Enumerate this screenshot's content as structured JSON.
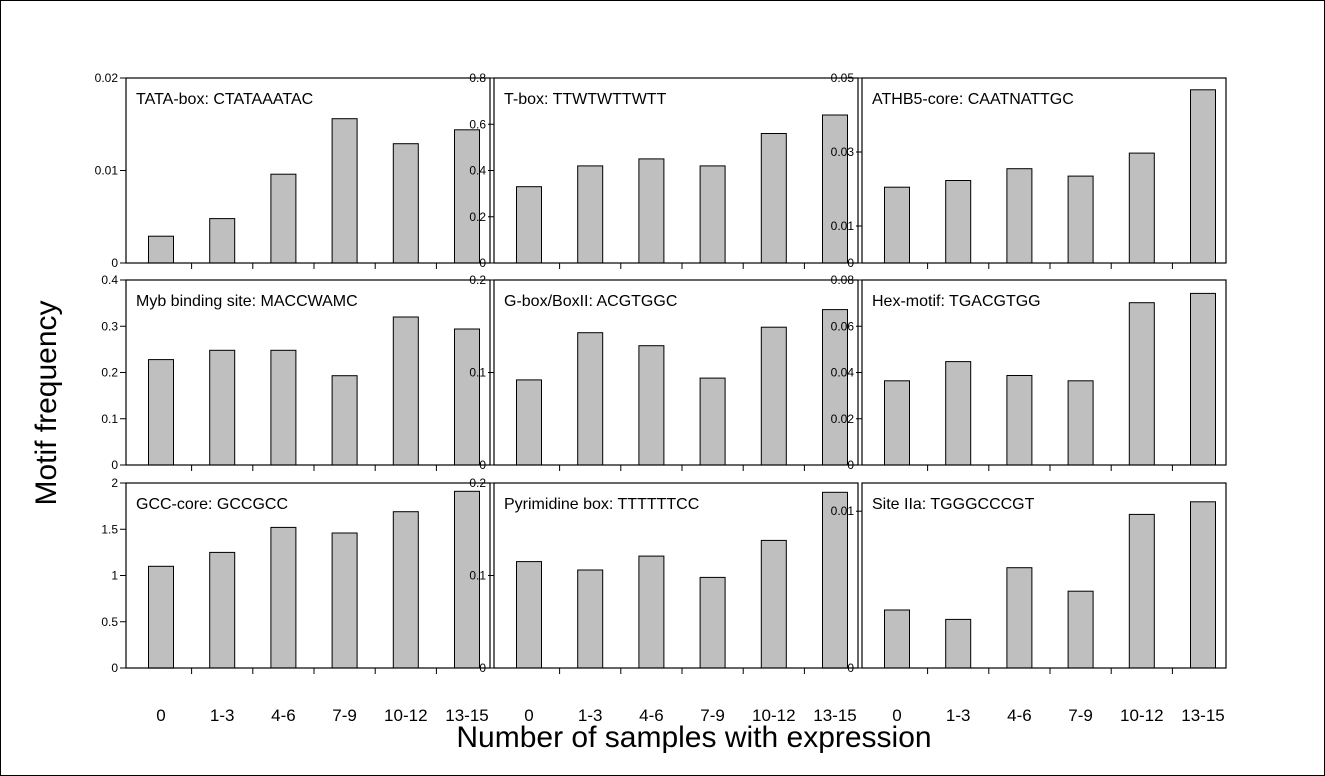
{
  "figure": {
    "xlabel": "Number of samples with expression",
    "ylabel": "Motif frequency",
    "categories": [
      "0",
      "1-3",
      "4-6",
      "7-9",
      "10-12",
      "13-15"
    ],
    "colors": {
      "bar": "#bfbfbf",
      "frame": "#000000",
      "background": "#ffffff"
    }
  },
  "chart_data": [
    {
      "type": "bar",
      "title": "TATA-box: CTATAAATAC",
      "categories": [
        "0",
        "1-3",
        "4-6",
        "7-9",
        "10-12",
        "13-15"
      ],
      "values": [
        0.0029,
        0.0048,
        0.0096,
        0.0156,
        0.0129,
        0.0144
      ],
      "ylim": [
        0,
        0.02
      ],
      "yticks": [
        0,
        0.01,
        0.02
      ],
      "ytick_labels": [
        "0",
        "0.01",
        "0.02"
      ],
      "xlabel": "",
      "ylabel": ""
    },
    {
      "type": "bar",
      "title": "T-box: TTWTWTTWTT",
      "categories": [
        "0",
        "1-3",
        "4-6",
        "7-9",
        "10-12",
        "13-15"
      ],
      "values": [
        0.33,
        0.42,
        0.45,
        0.42,
        0.56,
        0.64
      ],
      "ylim": [
        0,
        0.8
      ],
      "yticks": [
        0,
        0.2,
        0.4,
        0.6,
        0.8
      ],
      "ytick_labels": [
        "0",
        "0.2",
        "0.4",
        "0.6",
        "0.8"
      ],
      "xlabel": "",
      "ylabel": ""
    },
    {
      "type": "bar",
      "title": "ATHB5-core: CAATNATTGC",
      "categories": [
        "0",
        "1-3",
        "4-6",
        "7-9",
        "10-12",
        "13-15"
      ],
      "values": [
        0.0205,
        0.0223,
        0.0255,
        0.0235,
        0.0297,
        0.0468
      ],
      "ylim": [
        0,
        0.05
      ],
      "yticks": [
        0,
        0.01,
        0.03,
        0.05
      ],
      "ytick_labels": [
        "0",
        "0.01",
        "0.03",
        "0.05"
      ],
      "xlabel": "",
      "ylabel": ""
    },
    {
      "type": "bar",
      "title": "Myb binding site: MACCWAMC",
      "categories": [
        "0",
        "1-3",
        "4-6",
        "7-9",
        "10-12",
        "13-15"
      ],
      "values": [
        0.228,
        0.248,
        0.248,
        0.193,
        0.32,
        0.294
      ],
      "ylim": [
        0,
        0.4
      ],
      "yticks": [
        0,
        0.1,
        0.2,
        0.3,
        0.4
      ],
      "ytick_labels": [
        "0",
        "0.1",
        "0.2",
        "0.3",
        "0.4"
      ],
      "xlabel": "",
      "ylabel": ""
    },
    {
      "type": "bar",
      "title": "G-box/BoxII: ACGTGGC",
      "categories": [
        "0",
        "1-3",
        "4-6",
        "7-9",
        "10-12",
        "13-15"
      ],
      "values": [
        0.092,
        0.143,
        0.129,
        0.094,
        0.149,
        0.168
      ],
      "ylim": [
        0,
        0.2
      ],
      "yticks": [
        0,
        0.1,
        0.2
      ],
      "ytick_labels": [
        "0",
        "0.1",
        "0.2"
      ],
      "xlabel": "",
      "ylabel": ""
    },
    {
      "type": "bar",
      "title": "Hex-motif: TGACGTGG",
      "categories": [
        "0",
        "1-3",
        "4-6",
        "7-9",
        "10-12",
        "13-15"
      ],
      "values": [
        0.0364,
        0.0447,
        0.0387,
        0.0364,
        0.0702,
        0.0742
      ],
      "ylim": [
        0,
        0.08
      ],
      "yticks": [
        0,
        0.02,
        0.04,
        0.06,
        0.08
      ],
      "ytick_labels": [
        "0",
        "0.02",
        "0.04",
        "0.06",
        "0.08"
      ],
      "xlabel": "",
      "ylabel": ""
    },
    {
      "type": "bar",
      "title": "GCC-core: GCCGCC",
      "categories": [
        "0",
        "1-3",
        "4-6",
        "7-9",
        "10-12",
        "13-15"
      ],
      "values": [
        1.1,
        1.25,
        1.52,
        1.46,
        1.69,
        1.91
      ],
      "ylim": [
        0,
        2
      ],
      "yticks": [
        0,
        0.5,
        1,
        1.5,
        2
      ],
      "ytick_labels": [
        "0",
        "0.5",
        "1",
        "1.5",
        "2"
      ],
      "xlabel": "",
      "ylabel": ""
    },
    {
      "type": "bar",
      "title": "Pyrimidine box: TTTTTTCC",
      "categories": [
        "0",
        "1-3",
        "4-6",
        "7-9",
        "10-12",
        "13-15"
      ],
      "values": [
        0.115,
        0.106,
        0.121,
        0.098,
        0.138,
        0.19
      ],
      "ylim": [
        0,
        0.2
      ],
      "yticks": [
        0,
        0.1,
        0.2
      ],
      "ytick_labels": [
        "0",
        "0.1",
        "0.2"
      ],
      "xlabel": "",
      "ylabel": ""
    },
    {
      "type": "bar",
      "title": "Site IIa: TGGGCCCGT",
      "categories": [
        "0",
        "1-3",
        "4-6",
        "7-9",
        "10-12",
        "13-15"
      ],
      "values": [
        0.0037,
        0.0031,
        0.0064,
        0.0049,
        0.0098,
        0.0106
      ],
      "ylim": [
        0,
        0.0118
      ],
      "yticks": [
        0,
        0.01
      ],
      "ytick_labels": [
        "0",
        "0.01"
      ],
      "xlabel": "",
      "ylabel": ""
    }
  ]
}
